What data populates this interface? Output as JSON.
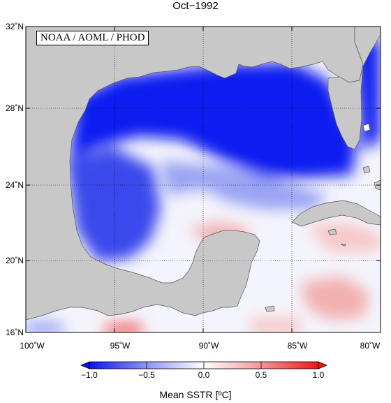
{
  "title": "Oct−1992",
  "credit": "NOAA / AOML / PHOD",
  "lat_labels": [
    "32˚N",
    "28˚N",
    "24˚N",
    "20˚N",
    "16˚N"
  ],
  "lon_labels": [
    "100˚W",
    "95˚W",
    "90˚W",
    "85˚W",
    "80˚W"
  ],
  "colorbar": {
    "tick_labels": [
      "−1.0",
      "−0.5",
      "0.0",
      "0.5",
      "1.0"
    ],
    "title": "Mean SSTR [ºC]",
    "min": -1.0,
    "max": 1.0
  },
  "colors": {
    "land": "#c8c8c8",
    "cold": "#0a1ef0",
    "neutral": "#ffffff",
    "warm": "#f01e1e"
  }
}
